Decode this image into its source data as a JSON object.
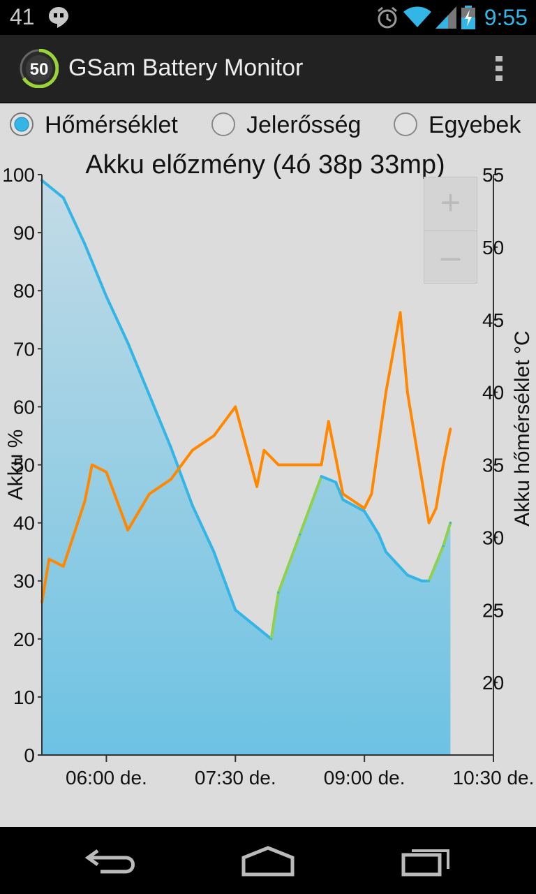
{
  "status_bar": {
    "notification_count": "41",
    "time": "9:55",
    "icons": [
      "hangouts-icon",
      "alarm-icon",
      "wifi-icon",
      "signal-icon",
      "battery-charging-icon"
    ]
  },
  "action_bar": {
    "logo_value": "50",
    "title": "GSam Battery Monitor"
  },
  "tabs": [
    {
      "label": "Hőmérséklet",
      "selected": true
    },
    {
      "label": "Jelerősség",
      "selected": false
    },
    {
      "label": "Egyebek",
      "selected": false
    }
  ],
  "zoom": {
    "plus": "+",
    "minus": "–"
  },
  "chart_data": {
    "type": "area",
    "title": "Akku előzmény (4ó 38p 33mp)",
    "ylabel": "Akku %",
    "y2label": "Akku hőmérséklet °C",
    "ylim": [
      0,
      100
    ],
    "y2lim": [
      15,
      55
    ],
    "xlim": [
      "05:15",
      "10:30"
    ],
    "x_ticks": [
      "06:00 de.",
      "07:30 de.",
      "09:00 de.",
      "10:30 de."
    ],
    "y_ticks": [
      "0",
      "10",
      "20",
      "30",
      "40",
      "50",
      "60",
      "70",
      "80",
      "90",
      "100"
    ],
    "y2_ticks": [
      "20",
      "25",
      "30",
      "35",
      "40",
      "45",
      "50",
      "55"
    ],
    "colors": {
      "battery": "#33b5e5",
      "charging": "#8fd14f",
      "temperature": "#ff8800",
      "fill_top": "#c3dbe6",
      "fill_bottom": "#6dc2e3"
    },
    "series": [
      {
        "name": "battery_percent",
        "x": [
          "05:15",
          "05:30",
          "05:45",
          "06:00",
          "06:15",
          "06:30",
          "06:45",
          "07:00",
          "07:15",
          "07:30",
          "07:45",
          "07:55",
          "08:00",
          "08:15",
          "08:30",
          "08:40",
          "08:45",
          "09:00",
          "09:10",
          "09:15",
          "09:30",
          "09:40",
          "09:45",
          "09:55",
          "10:00"
        ],
        "values": [
          99,
          96,
          88,
          79,
          71,
          62,
          53,
          43,
          35,
          25,
          22,
          20,
          28,
          38,
          48,
          47,
          44,
          42,
          38,
          35,
          31,
          30,
          30,
          36,
          40
        ]
      },
      {
        "name": "temperature_c",
        "x": [
          "05:15",
          "05:20",
          "05:30",
          "05:45",
          "05:50",
          "06:00",
          "06:15",
          "06:30",
          "06:45",
          "07:00",
          "07:15",
          "07:30",
          "07:45",
          "07:50",
          "08:00",
          "08:15",
          "08:30",
          "08:35",
          "08:45",
          "09:00",
          "09:05",
          "09:15",
          "09:25",
          "09:30",
          "09:40",
          "09:45",
          "09:50",
          "09:55",
          "10:00"
        ],
        "values": [
          25.5,
          28.5,
          28,
          32.5,
          35,
          34.5,
          30.5,
          33,
          34,
          36,
          37,
          39,
          33.5,
          36,
          35,
          35,
          35,
          38,
          33,
          32,
          33,
          40,
          45.5,
          40,
          34,
          31,
          32,
          35,
          37.5
        ]
      }
    ]
  }
}
